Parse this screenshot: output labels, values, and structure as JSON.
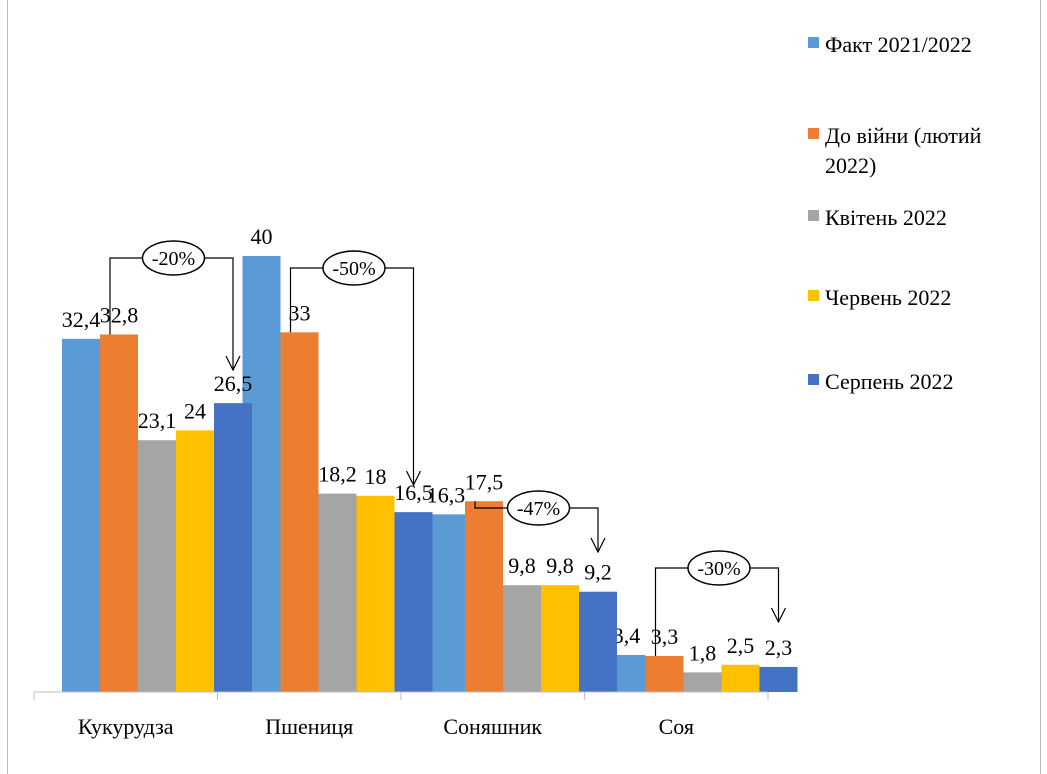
{
  "chart_data": {
    "type": "bar",
    "categories": [
      "Кукурудза",
      "Пшениця",
      "Соняшник",
      "Соя"
    ],
    "series": [
      {
        "name": "Факт 2021/2022",
        "color": "#5B9BD5",
        "values": [
          32.4,
          40,
          16.3,
          3.4
        ],
        "labels": [
          "32,4",
          "40",
          "16,3",
          "3,4"
        ]
      },
      {
        "name": "До війни (лютий 2022)",
        "color": "#ED7D31",
        "values": [
          32.8,
          33,
          17.5,
          3.3
        ],
        "labels": [
          "32,8",
          "33",
          "17,5",
          "3,3"
        ]
      },
      {
        "name": "Квітень 2022",
        "color": "#A5A5A5",
        "values": [
          23.1,
          18.2,
          9.8,
          1.8
        ],
        "labels": [
          "23,1",
          "18,2",
          "9,8",
          "1,8"
        ]
      },
      {
        "name": "Червень 2022",
        "color": "#FFC000",
        "values": [
          24,
          18,
          9.8,
          2.5
        ],
        "labels": [
          "24",
          "18",
          "9,8",
          "2,5"
        ]
      },
      {
        "name": "Серпень 2022",
        "color": "#4472C4",
        "values": [
          26.5,
          16.5,
          9.2,
          2.3
        ],
        "labels": [
          "26,5",
          "16,5",
          "9,2",
          "2,3"
        ]
      }
    ],
    "legend_lines": [
      [
        "Факт 2021/2022"
      ],
      [
        "До війни (лютий",
        "2022)"
      ],
      [
        "Квітень 2022"
      ],
      [
        "Червень 2022"
      ],
      [
        "Серпень 2022"
      ]
    ],
    "annotations": [
      {
        "category": "Кукурудза",
        "text": "-20%"
      },
      {
        "category": "Пшениця",
        "text": "-50%"
      },
      {
        "category": "Соняшник",
        "text": "-47%"
      },
      {
        "category": "Соя",
        "text": "-30%"
      }
    ],
    "ylim": [
      0,
      40
    ],
    "grid": false,
    "legend_position": "right"
  }
}
